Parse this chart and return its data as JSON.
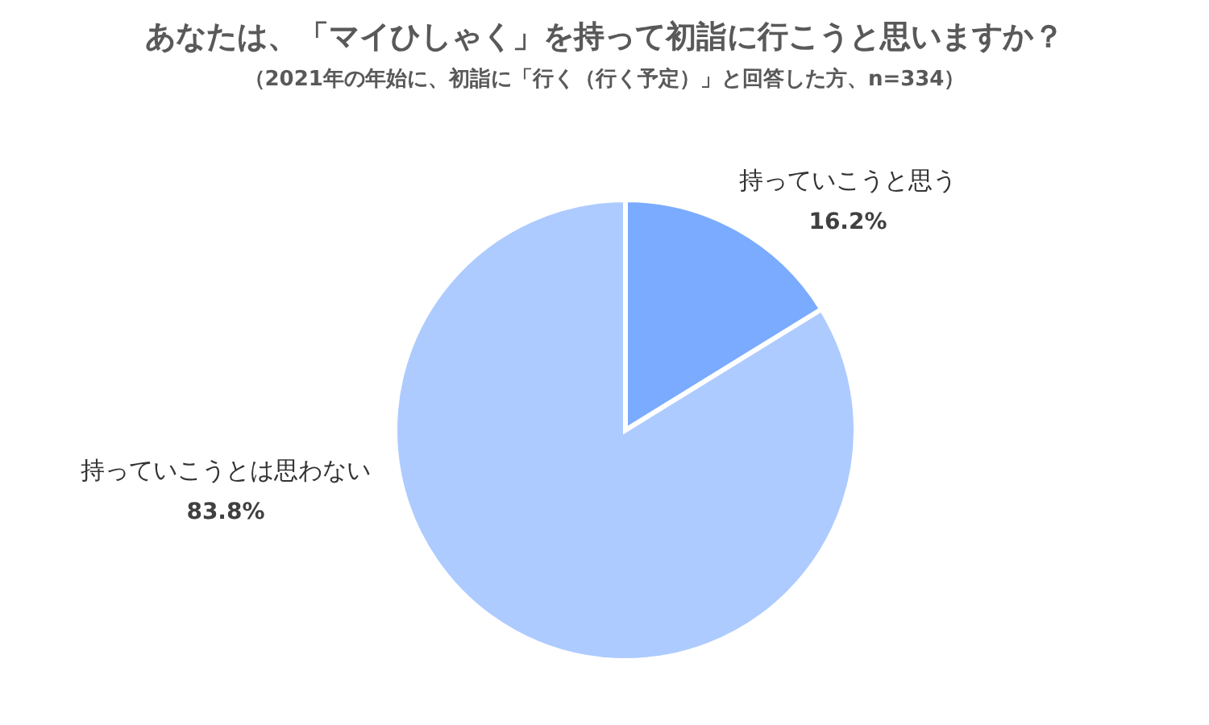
{
  "chart_data": {
    "type": "pie",
    "title": "あなたは、「マイひしゃく」を持って初詣に行こうと思いますか？",
    "subtitle": "（2021年の年始に、初詣に「行く（行く予定）」と回答した方、n=334）",
    "categories": [
      "持っていこうと思う",
      "持っていこうとは思わない"
    ],
    "values": [
      16.2,
      83.8
    ],
    "value_labels": [
      "16.2%",
      "83.8%"
    ],
    "colors": [
      "#7aabff",
      "#adcbff"
    ],
    "legend": false
  }
}
